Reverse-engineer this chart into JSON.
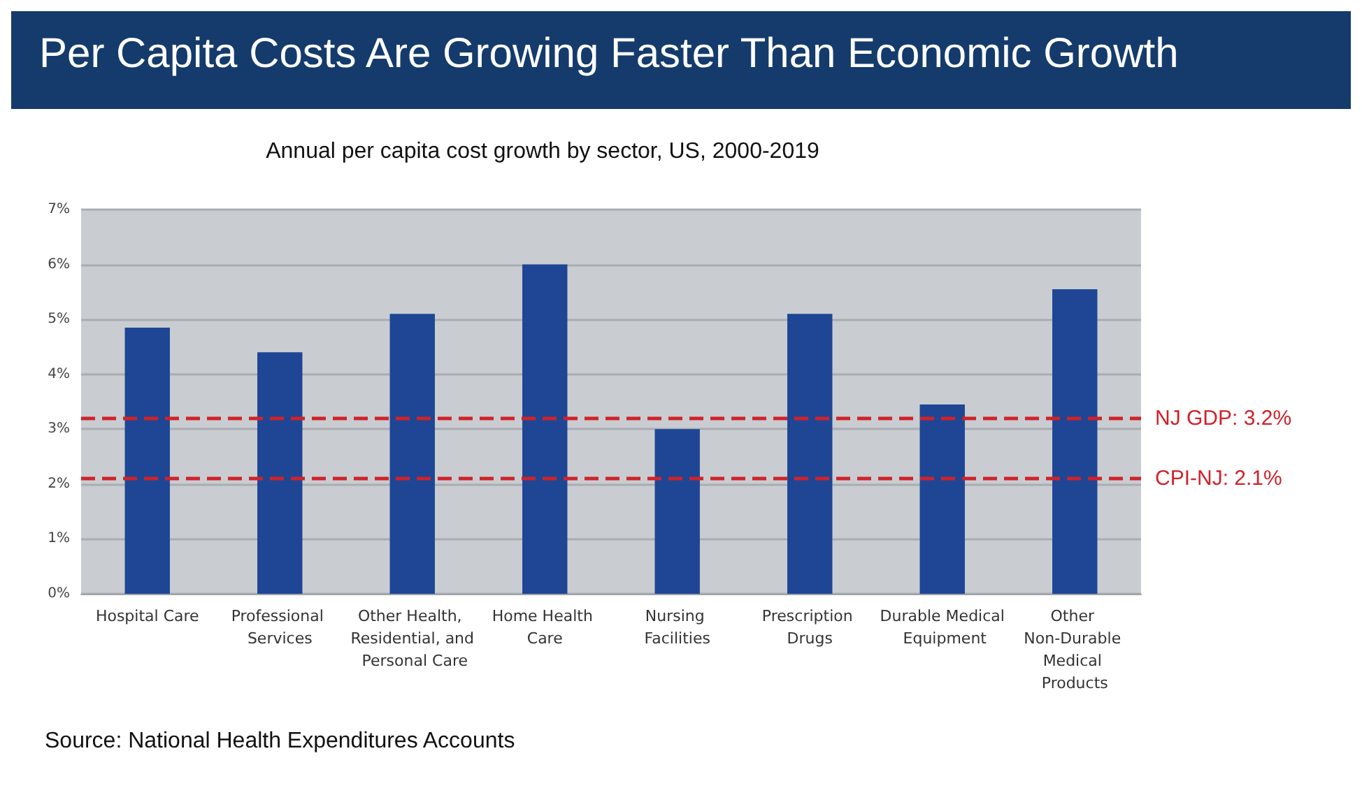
{
  "chart_data": {
    "type": "bar",
    "title": "Per Capita Costs Are Growing Faster Than Economic Growth",
    "subtitle": "Annual per capita cost growth by sector, US, 2000-2019",
    "categories": [
      "Hospital Care",
      "Professional Services",
      "Other Health, Residential, and Personal Care",
      "Home Health Care",
      "Nursing Facilities",
      "Prescription Drugs",
      "Durable Medical Equipment",
      "Other Non-Durable Medical Products"
    ],
    "values": [
      4.85,
      4.4,
      5.1,
      6.0,
      3.0,
      5.1,
      3.45,
      5.55
    ],
    "color": "#1f4695",
    "ylim": [
      0,
      7
    ],
    "yticks": [
      {
        "value": 0,
        "label": "0%"
      },
      {
        "value": 1,
        "label": "1%"
      },
      {
        "value": 2,
        "label": "2%"
      },
      {
        "value": 3,
        "label": "3%"
      },
      {
        "value": 4,
        "label": "4%"
      },
      {
        "value": 5,
        "label": "5%"
      },
      {
        "value": 6,
        "label": "6%"
      },
      {
        "value": 7,
        "label": "7%"
      }
    ],
    "grid": "y",
    "ref_lines": [
      {
        "axis": "y",
        "value": 3.2,
        "label": "NJ GDP: 3.2%",
        "color": "#d0222a",
        "line_style": "dashed"
      },
      {
        "axis": "y",
        "value": 2.1,
        "label": "CPI-NJ: 2.1%",
        "color": "#d0222a",
        "line_style": "dashed"
      }
    ],
    "annotations": [
      "Source: National Health Expenditures Accounts"
    ]
  }
}
